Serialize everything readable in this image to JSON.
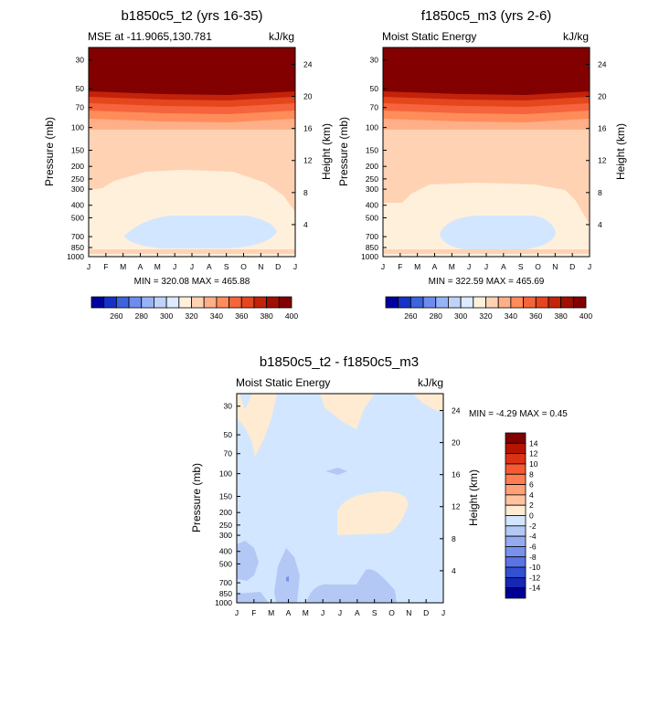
{
  "chart_data": [
    {
      "type": "heatmap",
      "title": "b1850c5_t2 (yrs 16-35)",
      "left_subtitle": "MSE at -11.9065,130.781",
      "right_subtitle": "kJ/kg",
      "xlabel": "",
      "ylabel": "Pressure (mb)",
      "ylabel_right": "Height (km)",
      "x_ticks": [
        "J",
        "F",
        "M",
        "A",
        "M",
        "J",
        "J",
        "A",
        "S",
        "O",
        "N",
        "D",
        "J"
      ],
      "y_ticks": [
        "30",
        "50",
        "70",
        "100",
        "150",
        "200",
        "250",
        "300",
        "400",
        "500",
        "700",
        "850",
        "1000"
      ],
      "y_ticks_right": [
        "24",
        "20",
        "16",
        "12",
        "8",
        "4"
      ],
      "minmax": "MIN = 320.08 MAX = 465.88",
      "colorbar": {
        "labels": [
          "260",
          "280",
          "300",
          "320",
          "340",
          "360",
          "380",
          "400"
        ],
        "colors": [
          "#0000a0",
          "#1432c8",
          "#3c64dc",
          "#6e8cf0",
          "#96b4f5",
          "#bed2fa",
          "#dcebff",
          "#fff0dc",
          "#ffd2b4",
          "#ffaf87",
          "#ff8c5a",
          "#f5643c",
          "#e6461e",
          "#c3230a",
          "#a00f00",
          "#820000"
        ]
      }
    },
    {
      "type": "heatmap",
      "title": "f1850c5_m3 (yrs 2-6)",
      "left_subtitle": "Moist Static Energy",
      "right_subtitle": "kJ/kg",
      "xlabel": "",
      "ylabel": "Pressure (mb)",
      "ylabel_right": "Height (km)",
      "x_ticks": [
        "J",
        "F",
        "M",
        "A",
        "M",
        "J",
        "J",
        "A",
        "S",
        "O",
        "N",
        "D",
        "J"
      ],
      "y_ticks": [
        "30",
        "50",
        "70",
        "100",
        "150",
        "200",
        "250",
        "300",
        "400",
        "500",
        "700",
        "850",
        "1000"
      ],
      "y_ticks_right": [
        "24",
        "20",
        "16",
        "12",
        "8",
        "4"
      ],
      "minmax": "MIN = 322.59 MAX = 465.69",
      "colorbar": {
        "labels": [
          "260",
          "280",
          "300",
          "320",
          "340",
          "360",
          "380",
          "400"
        ],
        "colors": [
          "#0000a0",
          "#1432c8",
          "#3c64dc",
          "#6e8cf0",
          "#96b4f5",
          "#bed2fa",
          "#dcebff",
          "#fff0dc",
          "#ffd2b4",
          "#ffaf87",
          "#ff8c5a",
          "#f5643c",
          "#e6461e",
          "#c3230a",
          "#a00f00",
          "#820000"
        ]
      }
    },
    {
      "type": "heatmap",
      "title": "b1850c5_t2 - f1850c5_m3",
      "left_subtitle": "Moist Static Energy",
      "right_subtitle": "kJ/kg",
      "xlabel": "",
      "ylabel": "Pressure (mb)",
      "ylabel_right": "Height (km)",
      "x_ticks": [
        "J",
        "F",
        "M",
        "A",
        "M",
        "J",
        "J",
        "A",
        "S",
        "O",
        "N",
        "D",
        "J"
      ],
      "y_ticks": [
        "30",
        "50",
        "70",
        "100",
        "150",
        "200",
        "250",
        "300",
        "400",
        "500",
        "700",
        "850",
        "1000"
      ],
      "y_ticks_right": [
        "24",
        "20",
        "16",
        "12",
        "8",
        "4"
      ],
      "minmax": "MIN =  -4.29 MAX =   0.45",
      "colorbar": {
        "labels": [
          "14",
          "12",
          "10",
          "8",
          "6",
          "4",
          "2",
          "0",
          "-2",
          "-4",
          "-6",
          "-8",
          "-10",
          "-12",
          "-14"
        ],
        "colors": [
          "#820000",
          "#b41400",
          "#dc3214",
          "#f55a32",
          "#ff7d50",
          "#ffa078",
          "#ffc3a0",
          "#ffebd2",
          "#d2e6ff",
          "#b4c8f5",
          "#96aaf0",
          "#7891eb",
          "#5a73e6",
          "#3250d2",
          "#1428b4",
          "#000096"
        ]
      }
    }
  ]
}
